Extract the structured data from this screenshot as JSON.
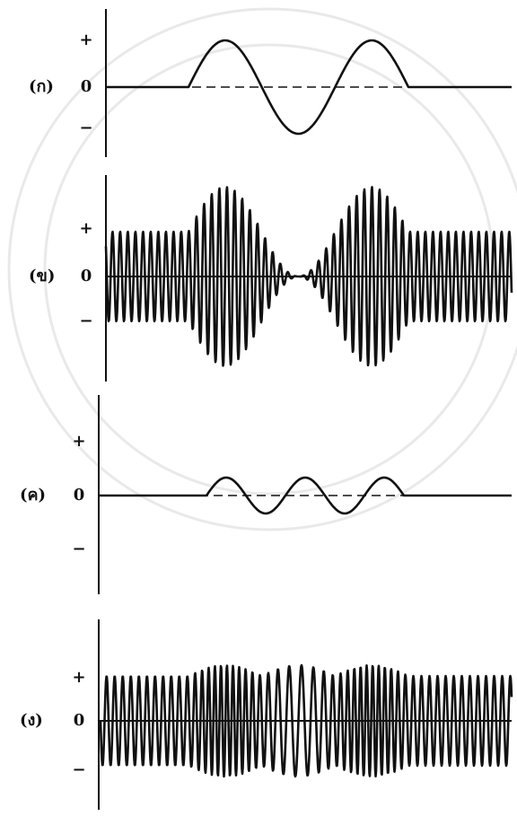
{
  "panels": [
    {
      "label": "(ก)",
      "plus": "+",
      "zero": "0",
      "minus": "−"
    },
    {
      "label": "(ข)",
      "plus": "+",
      "zero": "0",
      "minus": "−"
    },
    {
      "label": "(ค)",
      "plus": "+",
      "zero": "0",
      "minus": "−"
    },
    {
      "label": "(ง)",
      "plus": "+",
      "zero": "0",
      "minus": "−"
    }
  ]
}
